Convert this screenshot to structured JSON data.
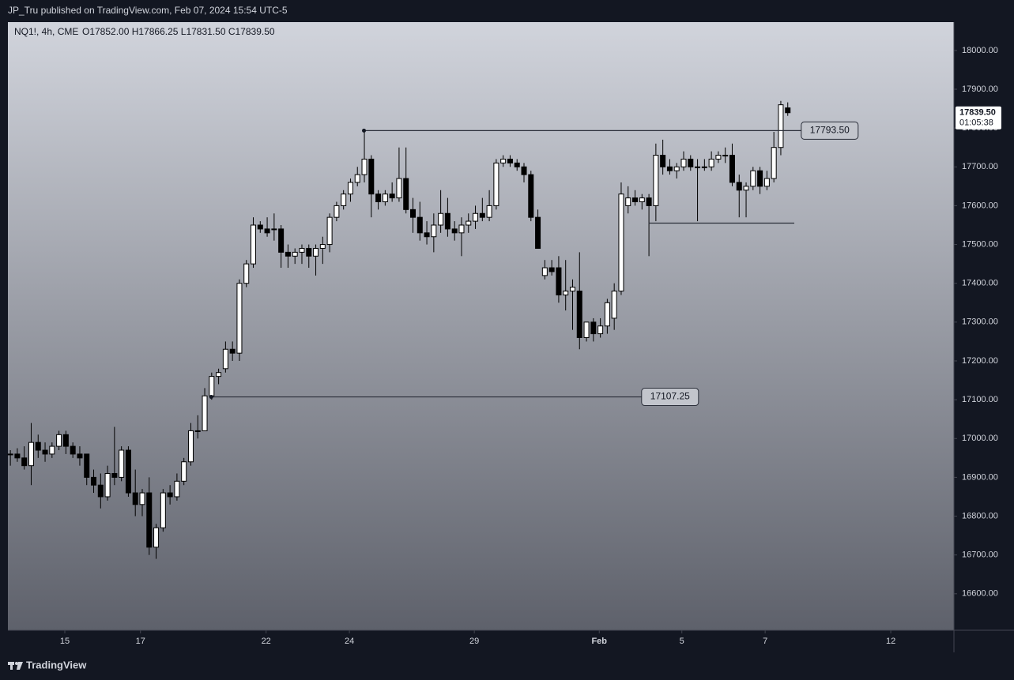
{
  "header": {
    "publisher": "JP_Tru published on TradingView.com, Feb 07, 2024 15:54 UTC-5",
    "symbol": "NQ1!, 4h, CME",
    "ohlc": "O17852.00 H17866.25 L17831.50 C17839.50"
  },
  "footer": {
    "brand": "TradingView"
  },
  "chart_data": {
    "type": "candlestick",
    "open": [
      16960,
      16960,
      16950,
      16930,
      16990,
      16970,
      16960,
      16980,
      17010,
      16980,
      16960,
      16960,
      16900,
      16880,
      16850,
      16910,
      16900,
      16970,
      16860,
      16830,
      16860,
      16720,
      16770,
      16860,
      16850,
      16890,
      16940,
      17020,
      17020,
      17110,
      17160,
      17180,
      17230,
      17220,
      17400,
      17450,
      17550,
      17540,
      17540,
      17540,
      17480,
      17470,
      17480,
      17490,
      17470,
      17490,
      17500,
      17570,
      17600,
      17630,
      17660,
      17680,
      17720,
      17630,
      17610,
      17630,
      17620,
      17670,
      17590,
      17570,
      17530,
      17520,
      17550,
      17580,
      17540,
      17530,
      17550,
      17560,
      17580,
      17570,
      17600,
      17710,
      17720,
      17710,
      17700,
      17680,
      17570,
      17420,
      17440,
      17440,
      17370,
      17380,
      17380,
      17260,
      17300,
      17270,
      17290,
      17310,
      17380,
      17600,
      17620,
      17610,
      17620,
      17600,
      17730,
      17700,
      17690,
      17700,
      17720,
      17700,
      17700,
      17700,
      17720,
      17730,
      17730,
      17660,
      17640,
      17650,
      17690,
      17650,
      17670,
      17750,
      17852
    ],
    "high": [
      16970,
      16975,
      16980,
      17040,
      17010,
      16990,
      16990,
      17020,
      17020,
      16990,
      16980,
      16960,
      16920,
      16910,
      16930,
      17030,
      16980,
      16980,
      16920,
      16870,
      16900,
      16780,
      16870,
      16880,
      16910,
      16950,
      17040,
      17060,
      17130,
      17170,
      17180,
      17250,
      17250,
      17410,
      17460,
      17570,
      17560,
      17570,
      17580,
      17550,
      17500,
      17490,
      17500,
      17500,
      17500,
      17520,
      17580,
      17610,
      17640,
      17670,
      17700,
      17793.5,
      17730,
      17640,
      17640,
      17660,
      17750,
      17750,
      17620,
      17610,
      17560,
      17580,
      17640,
      17620,
      17560,
      17570,
      17580,
      17600,
      17620,
      17640,
      17720,
      17730,
      17730,
      17720,
      17710,
      17690,
      17590,
      17460,
      17460,
      17470,
      17460,
      17410,
      17480,
      17300,
      17310,
      17310,
      17360,
      17400,
      17660,
      17650,
      17640,
      17630,
      17630,
      17760,
      17770,
      17720,
      17710,
      17740,
      17730,
      17720,
      17720,
      17740,
      17740,
      17750,
      17760,
      17680,
      17660,
      17700,
      17700,
      17690,
      17790,
      17870,
      17866.25
    ],
    "low": [
      16930,
      16940,
      16920,
      16880,
      16950,
      16940,
      16950,
      16970,
      16960,
      16950,
      16930,
      16880,
      16860,
      16820,
      16840,
      16880,
      16890,
      16850,
      16800,
      16800,
      16700,
      16690,
      16760,
      16830,
      16840,
      16880,
      16930,
      17000,
      17020,
      17100,
      17140,
      17170,
      17200,
      17200,
      17390,
      17440,
      17530,
      17520,
      17510,
      17440,
      17440,
      17450,
      17450,
      17440,
      17420,
      17450,
      17480,
      17560,
      17590,
      17610,
      17650,
      17660,
      17570,
      17590,
      17600,
      17610,
      17610,
      17580,
      17530,
      17510,
      17500,
      17480,
      17530,
      17520,
      17510,
      17470,
      17530,
      17540,
      17560,
      17560,
      17590,
      17700,
      17700,
      17690,
      17660,
      17560,
      17490,
      17410,
      17420,
      17350,
      17330,
      17280,
      17230,
      17250,
      17250,
      17260,
      17270,
      17280,
      17370,
      17580,
      17600,
      17590,
      17470,
      17560,
      17680,
      17680,
      17670,
      17690,
      17690,
      17560,
      17690,
      17690,
      17710,
      17710,
      17650,
      17570,
      17570,
      17640,
      17630,
      17640,
      17660,
      17730,
      17831.5
    ],
    "close": [
      16960,
      16950,
      16930,
      16990,
      16970,
      16960,
      16980,
      17010,
      16980,
      16960,
      16950,
      16900,
      16880,
      16850,
      16910,
      16900,
      16970,
      16860,
      16830,
      16860,
      16720,
      16770,
      16860,
      16850,
      16890,
      16940,
      17020,
      17020,
      17110,
      17160,
      17170,
      17230,
      17220,
      17400,
      17450,
      17550,
      17540,
      17530,
      17540,
      17480,
      17470,
      17480,
      17490,
      17470,
      17490,
      17500,
      17570,
      17600,
      17630,
      17660,
      17680,
      17720,
      17630,
      17610,
      17630,
      17620,
      17670,
      17590,
      17570,
      17530,
      17520,
      17550,
      17580,
      17540,
      17530,
      17550,
      17560,
      17580,
      17570,
      17600,
      17710,
      17720,
      17710,
      17700,
      17680,
      17570,
      17490,
      17440,
      17430,
      17370,
      17380,
      17390,
      17260,
      17300,
      17270,
      17290,
      17350,
      17380,
      17630,
      17620,
      17610,
      17620,
      17600,
      17730,
      17700,
      17690,
      17700,
      17720,
      17700,
      17700,
      17700,
      17720,
      17730,
      17730,
      17660,
      17640,
      17650,
      17690,
      17650,
      17670,
      17750,
      17860,
      17839.5
    ],
    "xlim": [
      -0.3,
      136
    ],
    "xticks": [
      {
        "value": 7.9,
        "label": "15"
      },
      {
        "value": 18.8,
        "label": "17"
      },
      {
        "value": 36.9,
        "label": "22"
      },
      {
        "value": 48.9,
        "label": "24"
      },
      {
        "value": 66.9,
        "label": "29"
      },
      {
        "value": 84.9,
        "label": "Feb"
      },
      {
        "value": 96.8,
        "label": "5"
      },
      {
        "value": 108.8,
        "label": "7"
      },
      {
        "value": 126.9,
        "label": "12"
      }
    ],
    "ylim": [
      16506,
      18073
    ],
    "yticks": [
      {
        "value": 16600,
        "label": "16600.00"
      },
      {
        "value": 16700,
        "label": "16700.00"
      },
      {
        "value": 16800,
        "label": "16800.00"
      },
      {
        "value": 16900,
        "label": "16900.00"
      },
      {
        "value": 17000,
        "label": "17000.00"
      },
      {
        "value": 17100,
        "label": "17100.00"
      },
      {
        "value": 17200,
        "label": "17200.00"
      },
      {
        "value": 17300,
        "label": "17300.00"
      },
      {
        "value": 17400,
        "label": "17400.00"
      },
      {
        "value": 17500,
        "label": "17500.00"
      },
      {
        "value": 17600,
        "label": "17600.00"
      },
      {
        "value": 17700,
        "label": "17700.00"
      },
      {
        "value": 17800,
        "label": "17800.00"
      },
      {
        "value": 17900,
        "label": "17900.00"
      },
      {
        "value": 18000,
        "label": "18000.00"
      }
    ],
    "levels": [
      {
        "value": 17793.5,
        "label": "17793.50",
        "start": 51,
        "end": 114
      },
      {
        "value": 17107.25,
        "label": "17107.25",
        "start": 29,
        "end": 91
      },
      {
        "value": 17555,
        "start": 92,
        "end": 113
      }
    ],
    "last_price": {
      "value": 17839.5,
      "label": "17839.50"
    },
    "countdown": "01:05:38",
    "up_color": "#ffffff",
    "down_color": "#000000"
  }
}
